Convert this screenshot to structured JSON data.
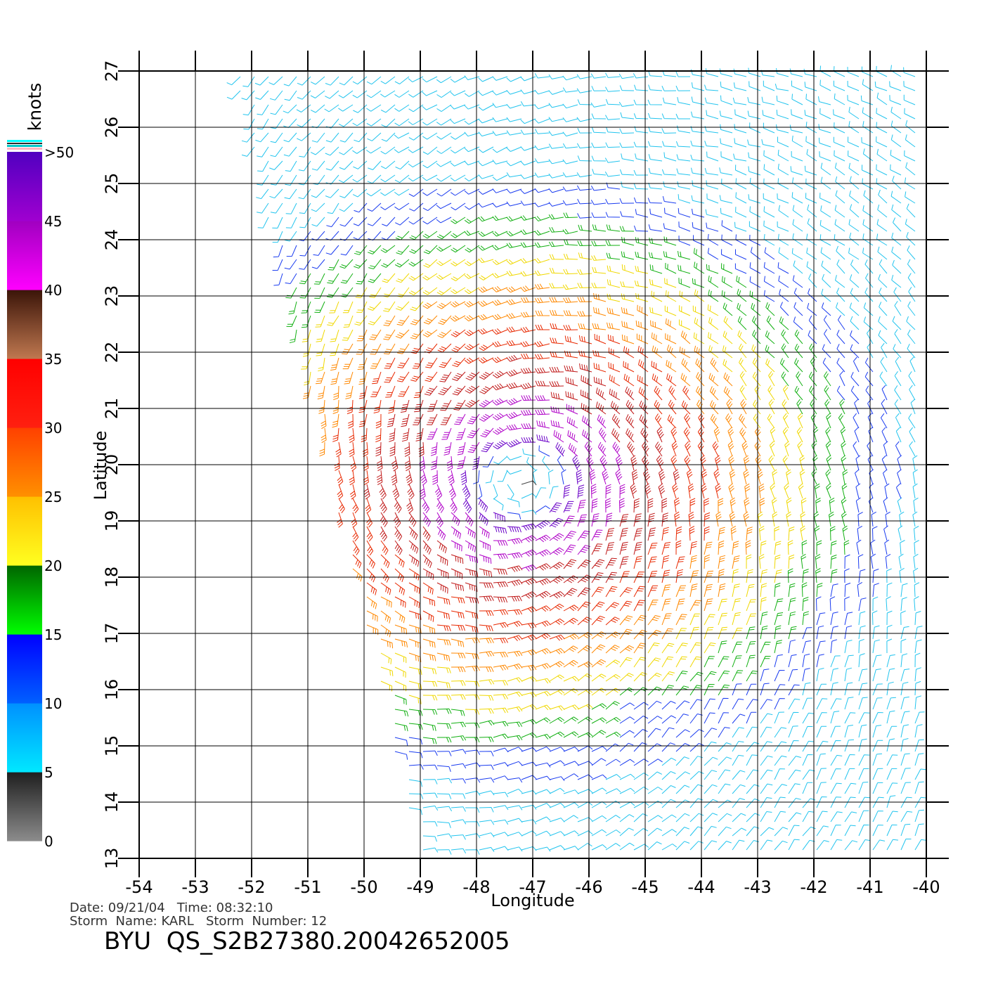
{
  "chart_data": {
    "type": "wind-barb map",
    "xlabel": "Longitude",
    "ylabel": "Latitude",
    "xlim": [
      -54,
      -40
    ],
    "ylim": [
      13,
      27
    ],
    "x_ticks": [
      "-54",
      "-53",
      "-52",
      "-51",
      "-50",
      "-49",
      "-48",
      "-47",
      "-46",
      "-45",
      "-44",
      "-43",
      "-42",
      "-41",
      "-40"
    ],
    "y_ticks": [
      "13",
      "14",
      "15",
      "16",
      "17",
      "18",
      "19",
      "20",
      "21",
      "22",
      "23",
      "24",
      "25",
      "26",
      "27"
    ],
    "grid": true,
    "storm_center": {
      "lon": -47.2,
      "lat": 19.7
    }
  },
  "legend": {
    "unit": "knots",
    "labels": [
      ">50",
      "45",
      "40",
      "35",
      "30",
      "25",
      "20",
      "15",
      "10",
      "5",
      "0"
    ],
    "bands": [
      {
        "range": [
          0,
          5
        ],
        "top": "#1e1e1e",
        "bottom": "#8c8c8c"
      },
      {
        "range": [
          5,
          10
        ],
        "top": "#0090ff",
        "bottom": "#00e8ff"
      },
      {
        "range": [
          10,
          15
        ],
        "top": "#0000ff",
        "bottom": "#0060ff"
      },
      {
        "range": [
          15,
          20
        ],
        "top": "#006400",
        "bottom": "#00ff00"
      },
      {
        "range": [
          20,
          25
        ],
        "top": "#ffc000",
        "bottom": "#ffff20"
      },
      {
        "range": [
          25,
          30
        ],
        "top": "#ff4000",
        "bottom": "#ff9000"
      },
      {
        "range": [
          30,
          35
        ],
        "top": "#ff0000",
        "bottom": "#ff2010"
      },
      {
        "range": [
          35,
          40
        ],
        "top": "#3a1408",
        "bottom": "#c07850"
      },
      {
        "range": [
          40,
          45
        ],
        "top": "#a000c0",
        "bottom": "#ff00ff"
      },
      {
        "range": [
          45,
          50
        ],
        "top": "#5000c0",
        "bottom": "#a000d0"
      }
    ]
  },
  "info": {
    "date_line": "Date: 09/21/04   Time: 08:32:10",
    "storm_line": "Storm  Name: KARL   Storm  Number: 12",
    "title": "BYU  QS_S2B27380.20042652005"
  }
}
